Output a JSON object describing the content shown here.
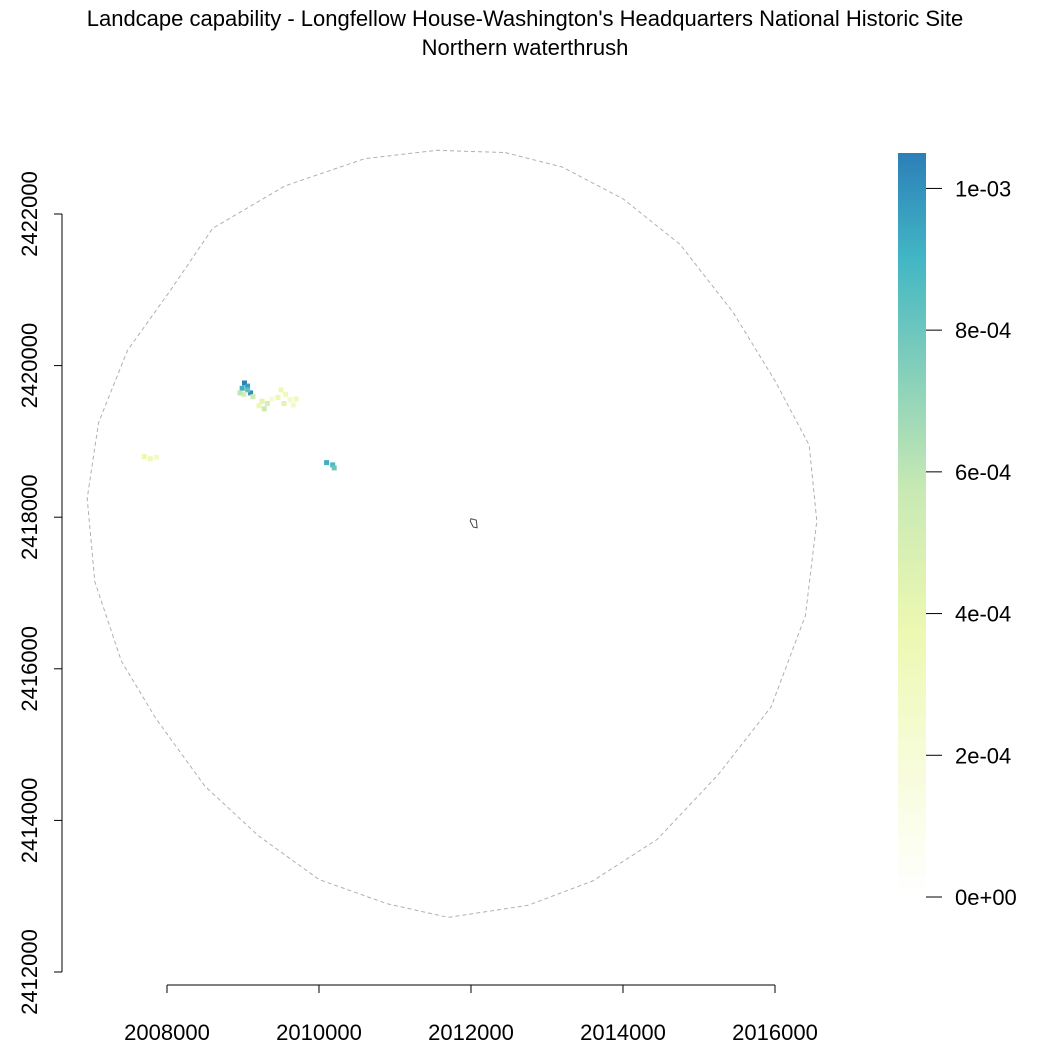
{
  "chart_data": {
    "type": "heatmap",
    "title": "Landcape capability - Longfellow House-Washington's Headquarters National Historic Site",
    "subtitle": "Northern waterthrush",
    "xlabel": "",
    "ylabel": "",
    "x_ticks": [
      "2008000",
      "2010000",
      "2012000",
      "2014000",
      "2016000"
    ],
    "y_ticks": [
      "2412000",
      "2414000",
      "2416000",
      "2418000",
      "2420000",
      "2422000"
    ],
    "xlim": [
      2007000,
      2017000
    ],
    "ylim": [
      2412000,
      2423000
    ],
    "grid": false,
    "buffer_boundary": [
      [
        2012450,
        2422810
      ],
      [
        2013200,
        2422620
      ],
      [
        2014000,
        2422200
      ],
      [
        2014750,
        2421600
      ],
      [
        2015450,
        2420700
      ],
      [
        2016000,
        2419800
      ],
      [
        2016450,
        2418950
      ],
      [
        2016550,
        2417950
      ],
      [
        2016400,
        2416700
      ],
      [
        2015950,
        2415500
      ],
      [
        2015250,
        2414600
      ],
      [
        2014450,
        2413750
      ],
      [
        2013600,
        2413200
      ],
      [
        2012750,
        2412880
      ],
      [
        2011700,
        2412720
      ],
      [
        2010900,
        2412900
      ],
      [
        2010000,
        2413220
      ],
      [
        2009200,
        2413800
      ],
      [
        2008500,
        2414450
      ],
      [
        2007850,
        2415350
      ],
      [
        2007400,
        2416100
      ],
      [
        2007050,
        2417150
      ],
      [
        2006950,
        2418250
      ],
      [
        2007100,
        2419250
      ],
      [
        2007480,
        2420200
      ],
      [
        2008050,
        2421000
      ],
      [
        2008600,
        2421810
      ],
      [
        2009550,
        2422370
      ],
      [
        2010600,
        2422730
      ],
      [
        2011550,
        2422840
      ]
    ],
    "park_boundary": [
      [
        2012000,
        2417980
      ],
      [
        2012070,
        2417960
      ],
      [
        2012080,
        2417860
      ],
      [
        2012030,
        2417870
      ],
      [
        2011990,
        2417950
      ]
    ],
    "cells": [
      {
        "x": 2009020,
        "y": 2419770,
        "value": 0.00105
      },
      {
        "x": 2009060,
        "y": 2419730,
        "value": 0.00095
      },
      {
        "x": 2008990,
        "y": 2419700,
        "value": 0.0009
      },
      {
        "x": 2009100,
        "y": 2419640,
        "value": 0.001
      },
      {
        "x": 2009060,
        "y": 2419680,
        "value": 0.0008
      },
      {
        "x": 2009010,
        "y": 2419620,
        "value": 0.00045
      },
      {
        "x": 2008960,
        "y": 2419640,
        "value": 0.00055
      },
      {
        "x": 2009130,
        "y": 2419590,
        "value": 0.0005
      },
      {
        "x": 2009250,
        "y": 2419530,
        "value": 0.0004
      },
      {
        "x": 2009320,
        "y": 2419500,
        "value": 0.00045
      },
      {
        "x": 2009280,
        "y": 2419430,
        "value": 0.0005
      },
      {
        "x": 2009210,
        "y": 2419470,
        "value": 0.00035
      },
      {
        "x": 2009500,
        "y": 2419680,
        "value": 0.00035
      },
      {
        "x": 2009560,
        "y": 2419620,
        "value": 0.0003
      },
      {
        "x": 2009460,
        "y": 2419580,
        "value": 0.00035
      },
      {
        "x": 2009620,
        "y": 2419550,
        "value": 0.00025
      },
      {
        "x": 2009700,
        "y": 2419560,
        "value": 0.0003
      },
      {
        "x": 2009540,
        "y": 2419500,
        "value": 0.0004
      },
      {
        "x": 2009660,
        "y": 2419480,
        "value": 0.00025
      },
      {
        "x": 2009380,
        "y": 2419560,
        "value": 0.0002
      },
      {
        "x": 2007700,
        "y": 2418800,
        "value": 0.00035
      },
      {
        "x": 2007780,
        "y": 2418770,
        "value": 0.0003
      },
      {
        "x": 2007860,
        "y": 2418790,
        "value": 0.00025
      },
      {
        "x": 2010100,
        "y": 2418720,
        "value": 0.0009
      },
      {
        "x": 2010180,
        "y": 2418690,
        "value": 0.00085
      },
      {
        "x": 2010200,
        "y": 2418650,
        "value": 0.00075
      }
    ],
    "legend": {
      "range": [
        0,
        0.00105
      ],
      "ticks": [
        "0e+00",
        "2e-04",
        "4e-04",
        "6e-04",
        "8e-04",
        "1e-03"
      ],
      "tick_values": [
        0,
        0.0002,
        0.0004,
        0.0006,
        0.0008,
        0.001
      ],
      "colors": [
        "#ffffff",
        "#f7fcd9",
        "#edf8b1",
        "#c7e9b4",
        "#7fcdbb",
        "#41b6c4",
        "#2c7fb8"
      ]
    }
  }
}
